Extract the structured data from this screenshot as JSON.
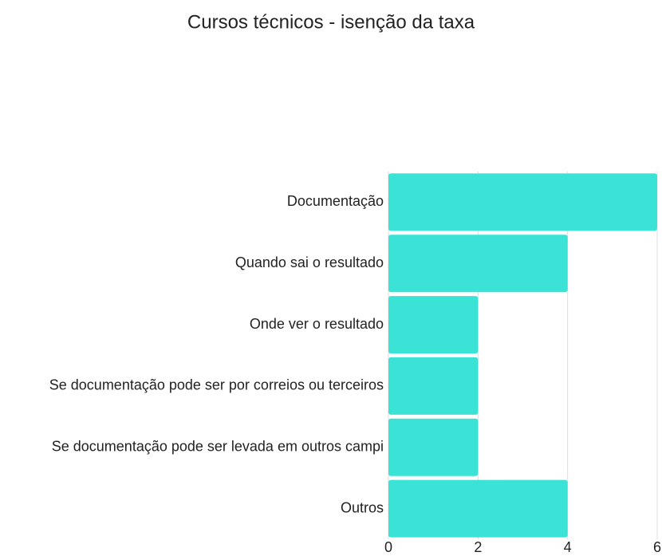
{
  "chart_data": {
    "type": "barh",
    "title": "Cursos técnicos - isenção da taxa",
    "categories": [
      "Documentação",
      "Quando sai o resultado",
      "Onde ver o resultado",
      "Se documentação pode ser por correios ou terceiros",
      "Se documentação pode ser levada em outros campi",
      "Outros"
    ],
    "values": [
      6,
      4,
      2,
      2,
      2,
      4
    ],
    "color": "#3ae3d5",
    "xlim": [
      0,
      6
    ],
    "xticks": [
      0,
      2,
      4,
      6
    ],
    "grid": true
  }
}
